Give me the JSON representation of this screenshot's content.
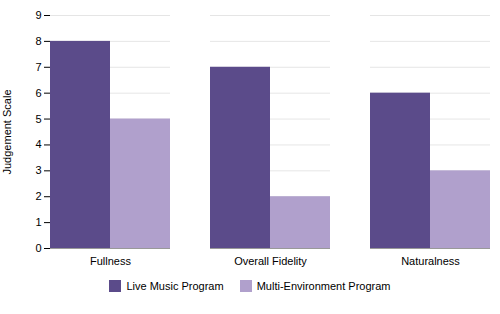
{
  "chart_data": {
    "type": "bar",
    "categories": [
      "Fullness",
      "Overall Fidelity",
      "Naturalness"
    ],
    "series": [
      {
        "name": "Live Music Program",
        "color": "#5b4b8a",
        "values": [
          8,
          7,
          6
        ]
      },
      {
        "name": "Multi-Environment Program",
        "color": "#b0a0cc",
        "values": [
          5,
          2,
          3
        ]
      }
    ],
    "ylabel": "Judgement Scale",
    "ylim": [
      0,
      9
    ],
    "yticks": [
      0,
      1,
      2,
      3,
      4,
      5,
      6,
      7,
      8,
      9
    ],
    "grid": true,
    "legend": "bottom"
  }
}
